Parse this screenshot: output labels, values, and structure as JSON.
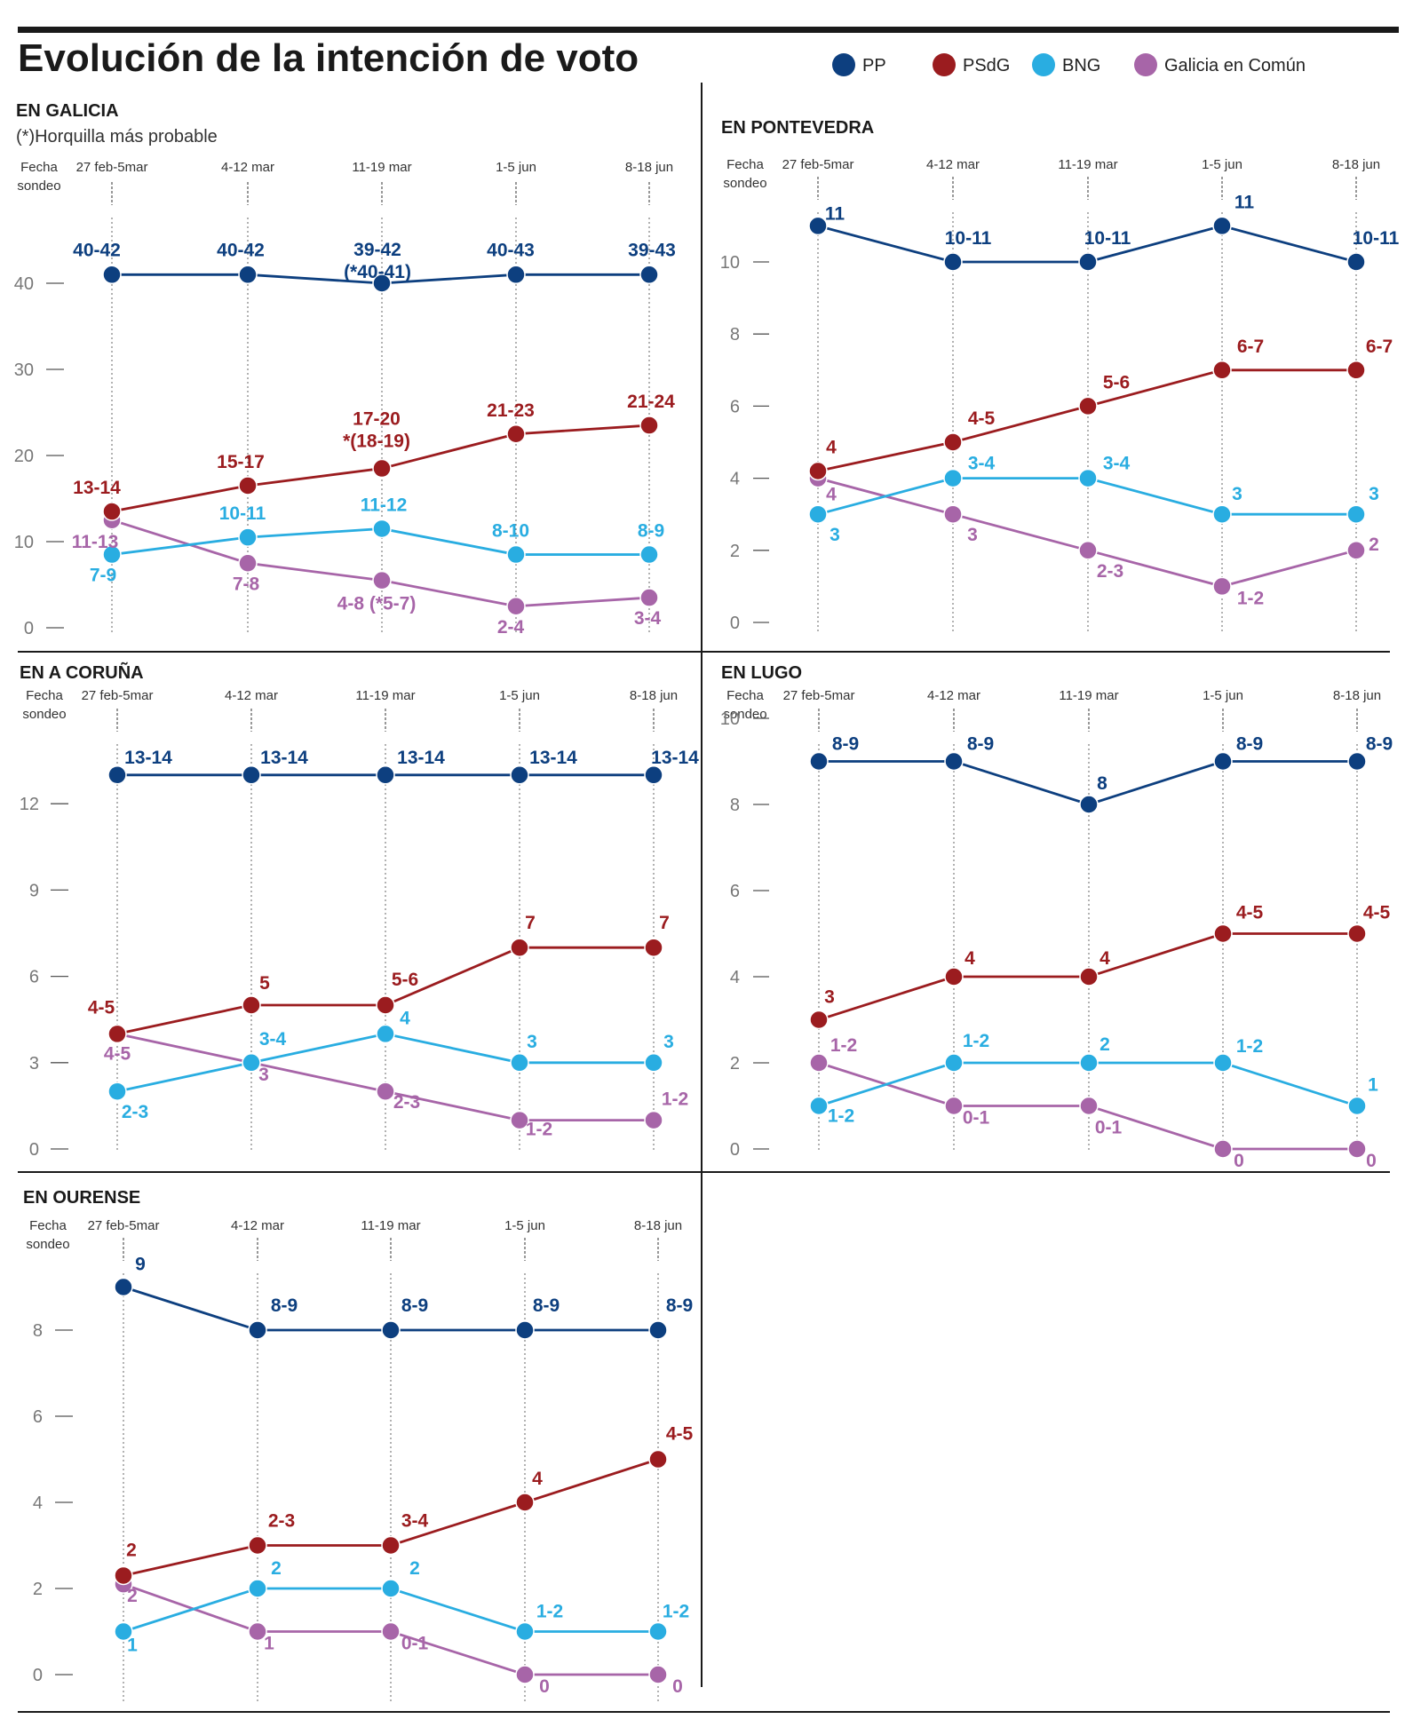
{
  "title": "Evolución de la intención de voto",
  "legend": [
    {
      "name": "PP",
      "color": "#0d3f7f"
    },
    {
      "name": "PSdG",
      "color": "#9b1c1f"
    },
    {
      "name": "BNG",
      "color": "#29ade1"
    },
    {
      "name": "Galicia en Común",
      "color": "#a765a8"
    }
  ],
  "axis_header": [
    "Fecha",
    "sondeo"
  ],
  "chart_data": [
    {
      "type": "line",
      "title": "EN GALICIA",
      "subtitle": "(*)Horquilla más probable",
      "categories": [
        "27 feb-5mar",
        "4-12 mar",
        "11-19 mar",
        "1-5 jun",
        "8-18 jun"
      ],
      "yticks": [
        0,
        10,
        20,
        30,
        40
      ],
      "ylim": [
        0,
        42
      ],
      "series": [
        {
          "name": "PP",
          "values": [
            41,
            41,
            40,
            41,
            41
          ],
          "labels": [
            "40-42",
            "40-42",
            "39-42\n(*40-41)",
            "40-43",
            "39-43"
          ]
        },
        {
          "name": "PSdG",
          "values": [
            13.5,
            16.5,
            18.5,
            22.5,
            23.5
          ],
          "labels": [
            "13-14",
            "15-17",
            "17-20\n*(18-19)",
            "21-23",
            "21-24"
          ]
        },
        {
          "name": "BNG",
          "values": [
            8.5,
            10.5,
            11.5,
            8.5,
            8.5
          ],
          "labels": [
            "7-9",
            "10-11",
            "11-12",
            "8-10",
            "8-9"
          ]
        },
        {
          "name": "Galicia en Común",
          "values": [
            12.5,
            7.5,
            5.5,
            2.5,
            3.5
          ],
          "labels": [
            "11-13",
            "7-8",
            "4-8 (*5-7)",
            "2-4",
            "3-4"
          ]
        }
      ]
    },
    {
      "type": "line",
      "title": "EN PONTEVEDRA",
      "subtitle": "",
      "categories": [
        "27 feb-5mar",
        "4-12 mar",
        "11-19 mar",
        "1-5 jun",
        "8-18 jun"
      ],
      "yticks": [
        0,
        2,
        4,
        6,
        8,
        10
      ],
      "ylim": [
        0,
        11.2
      ],
      "series": [
        {
          "name": "PP",
          "values": [
            11,
            10,
            10,
            11,
            10
          ],
          "labels": [
            "11",
            "10-11",
            "10-11",
            "11",
            "10-11"
          ]
        },
        {
          "name": "PSdG",
          "values": [
            4.2,
            5,
            6,
            7,
            7
          ],
          "labels": [
            "4",
            "4-5",
            "5-6",
            "6-7",
            "6-7"
          ]
        },
        {
          "name": "BNG",
          "values": [
            3,
            4,
            4,
            3,
            3
          ],
          "labels": [
            "3",
            "3-4",
            "3-4",
            "3",
            "3"
          ]
        },
        {
          "name": "Galicia en Común",
          "values": [
            4,
            3,
            2,
            1,
            2
          ],
          "labels": [
            "4",
            "3",
            "2-3",
            "1-2",
            "2"
          ]
        }
      ]
    },
    {
      "type": "line",
      "title": "EN A CORUÑA",
      "subtitle": "",
      "categories": [
        "27 feb-5mar",
        "4-12 mar",
        "11-19 mar",
        "1-5 jun",
        "8-18 jun"
      ],
      "yticks": [
        0,
        3,
        6,
        9,
        12
      ],
      "ylim": [
        0,
        13.6
      ],
      "series": [
        {
          "name": "PP",
          "values": [
            13,
            13,
            13,
            13,
            13
          ],
          "labels": [
            "13-14",
            "13-14",
            "13-14",
            "13-14",
            "13-14"
          ]
        },
        {
          "name": "PSdG",
          "values": [
            4,
            5,
            5,
            7,
            7
          ],
          "labels": [
            "4-5",
            "5",
            "5-6",
            "7",
            "7"
          ]
        },
        {
          "name": "BNG",
          "values": [
            2,
            3,
            4,
            3,
            3
          ],
          "labels": [
            "2-3",
            "3-4",
            "4",
            "3",
            "3"
          ]
        },
        {
          "name": "Galicia en Común",
          "values": [
            4,
            3,
            2,
            1,
            1
          ],
          "labels": [
            "4-5",
            "3",
            "2-3",
            "1-2",
            "1-2"
          ]
        }
      ]
    },
    {
      "type": "line",
      "title": "EN LUGO",
      "subtitle": "",
      "categories": [
        "27 feb-5mar",
        "4-12 mar",
        "11-19 mar",
        "1-5 jun",
        "8-18 jun"
      ],
      "yticks": [
        0,
        2,
        4,
        6,
        8,
        10
      ],
      "ylim": [
        0,
        10
      ],
      "series": [
        {
          "name": "PP",
          "values": [
            9,
            9,
            8,
            9,
            9
          ],
          "labels": [
            "8-9",
            "8-9",
            "8",
            "8-9",
            "8-9"
          ]
        },
        {
          "name": "PSdG",
          "values": [
            3,
            4,
            4,
            5,
            5
          ],
          "labels": [
            "3",
            "4",
            "4",
            "4-5",
            "4-5"
          ]
        },
        {
          "name": "BNG",
          "values": [
            1,
            2,
            2,
            2,
            1
          ],
          "labels": [
            "1-2",
            "1-2",
            "2",
            "1-2",
            "1"
          ]
        },
        {
          "name": "Galicia en Común",
          "values": [
            2,
            1,
            1,
            0,
            0
          ],
          "labels": [
            "1-2",
            "0-1",
            "0-1",
            "0",
            "0"
          ]
        }
      ]
    },
    {
      "type": "line",
      "title": "EN OURENSE",
      "subtitle": "",
      "categories": [
        "27 feb-5mar",
        "4-12 mar",
        "11-19 mar",
        "1-5 jun",
        "8-18 jun"
      ],
      "yticks": [
        0,
        2,
        4,
        6,
        8
      ],
      "ylim": [
        0,
        9
      ],
      "series": [
        {
          "name": "PP",
          "values": [
            9,
            8,
            8,
            8,
            8
          ],
          "labels": [
            "9",
            "8-9",
            "8-9",
            "8-9",
            "8-9"
          ]
        },
        {
          "name": "PSdG",
          "values": [
            2.3,
            3,
            3,
            4,
            5
          ],
          "labels": [
            "2",
            "2-3",
            "3-4",
            "4",
            "4-5"
          ]
        },
        {
          "name": "BNG",
          "values": [
            1,
            2,
            2,
            1,
            1
          ],
          "labels": [
            "1",
            "2",
            "2",
            "1-2",
            "1-2"
          ]
        },
        {
          "name": "Galicia en Común",
          "values": [
            2.1,
            1,
            1,
            0,
            0
          ],
          "labels": [
            "2",
            "1",
            "0-1",
            "0",
            "0"
          ]
        }
      ]
    }
  ]
}
